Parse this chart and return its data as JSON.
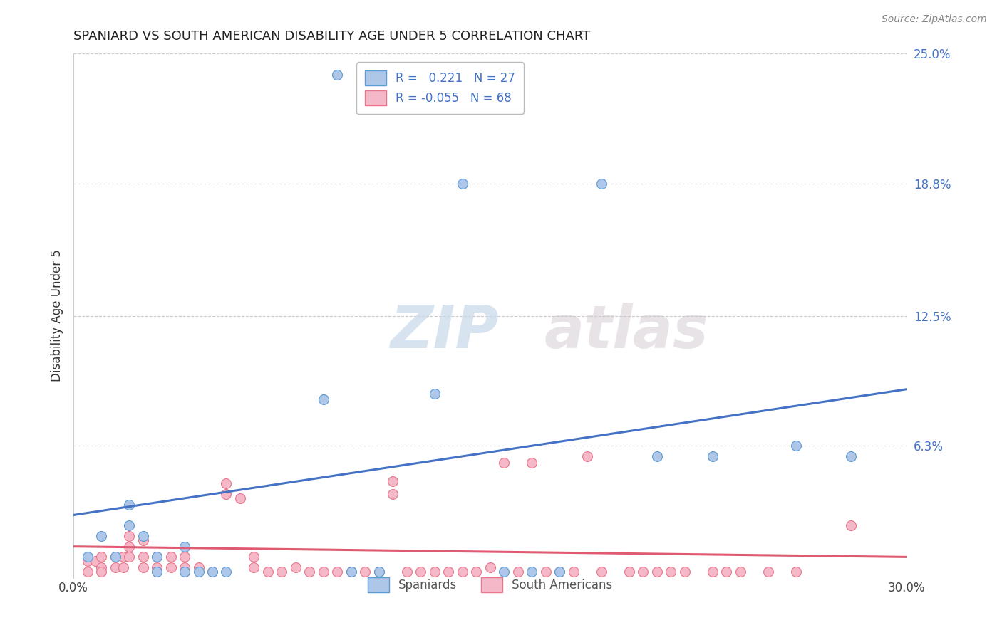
{
  "title": "SPANIARD VS SOUTH AMERICAN DISABILITY AGE UNDER 5 CORRELATION CHART",
  "source": "Source: ZipAtlas.com",
  "ylabel": "Disability Age Under 5",
  "xlim": [
    0.0,
    0.3
  ],
  "ylim": [
    0.0,
    0.25
  ],
  "yticks": [
    0.0,
    0.063,
    0.125,
    0.188,
    0.25
  ],
  "ytick_labels": [
    "",
    "6.3%",
    "12.5%",
    "18.8%",
    "25.0%"
  ],
  "xticks": [
    0.0,
    0.05,
    0.1,
    0.15,
    0.2,
    0.25,
    0.3
  ],
  "xtick_labels": [
    "0.0%",
    "",
    "",
    "",
    "",
    "",
    "30.0%"
  ],
  "blue_fill": "#aec6e8",
  "pink_fill": "#f5b8c8",
  "blue_edge": "#5b9bd5",
  "pink_edge": "#e8768a",
  "blue_line": "#4472c4",
  "pink_line": "#e05a72",
  "R_blue": 0.221,
  "N_blue": 27,
  "R_pink": -0.055,
  "N_pink": 68,
  "label_blue": "Spaniards",
  "label_pink": "South Americans",
  "watermark_zip": "ZIP",
  "watermark_atlas": "atlas",
  "spaniards_x": [
    0.005,
    0.01,
    0.015,
    0.02,
    0.02,
    0.025,
    0.03,
    0.03,
    0.04,
    0.04,
    0.045,
    0.05,
    0.055,
    0.09,
    0.095,
    0.13,
    0.14,
    0.19,
    0.21,
    0.23,
    0.26,
    0.28,
    0.11,
    0.155,
    0.165,
    0.175,
    0.1
  ],
  "spaniards_y": [
    0.01,
    0.02,
    0.01,
    0.025,
    0.035,
    0.02,
    0.01,
    0.003,
    0.015,
    0.003,
    0.003,
    0.003,
    0.003,
    0.085,
    0.24,
    0.088,
    0.188,
    0.188,
    0.058,
    0.058,
    0.063,
    0.058,
    0.003,
    0.003,
    0.003,
    0.003,
    0.003
  ],
  "southamericans_x": [
    0.005,
    0.005,
    0.008,
    0.01,
    0.01,
    0.01,
    0.015,
    0.015,
    0.018,
    0.018,
    0.02,
    0.02,
    0.02,
    0.025,
    0.025,
    0.025,
    0.03,
    0.03,
    0.03,
    0.035,
    0.035,
    0.04,
    0.04,
    0.04,
    0.045,
    0.05,
    0.055,
    0.055,
    0.06,
    0.065,
    0.065,
    0.07,
    0.075,
    0.08,
    0.085,
    0.09,
    0.095,
    0.1,
    0.105,
    0.11,
    0.115,
    0.115,
    0.12,
    0.125,
    0.13,
    0.135,
    0.14,
    0.145,
    0.15,
    0.155,
    0.16,
    0.165,
    0.17,
    0.175,
    0.18,
    0.185,
    0.19,
    0.2,
    0.205,
    0.21,
    0.215,
    0.22,
    0.23,
    0.235,
    0.24,
    0.25,
    0.26,
    0.28
  ],
  "southamericans_y": [
    0.008,
    0.003,
    0.008,
    0.005,
    0.01,
    0.003,
    0.005,
    0.01,
    0.005,
    0.01,
    0.01,
    0.015,
    0.02,
    0.005,
    0.01,
    0.018,
    0.005,
    0.01,
    0.003,
    0.005,
    0.01,
    0.005,
    0.01,
    0.003,
    0.005,
    0.003,
    0.04,
    0.045,
    0.038,
    0.005,
    0.01,
    0.003,
    0.003,
    0.005,
    0.003,
    0.003,
    0.003,
    0.003,
    0.003,
    0.003,
    0.04,
    0.046,
    0.003,
    0.003,
    0.003,
    0.003,
    0.003,
    0.003,
    0.005,
    0.055,
    0.003,
    0.055,
    0.003,
    0.003,
    0.003,
    0.058,
    0.003,
    0.003,
    0.003,
    0.003,
    0.003,
    0.003,
    0.003,
    0.003,
    0.003,
    0.003,
    0.003,
    0.025
  ]
}
